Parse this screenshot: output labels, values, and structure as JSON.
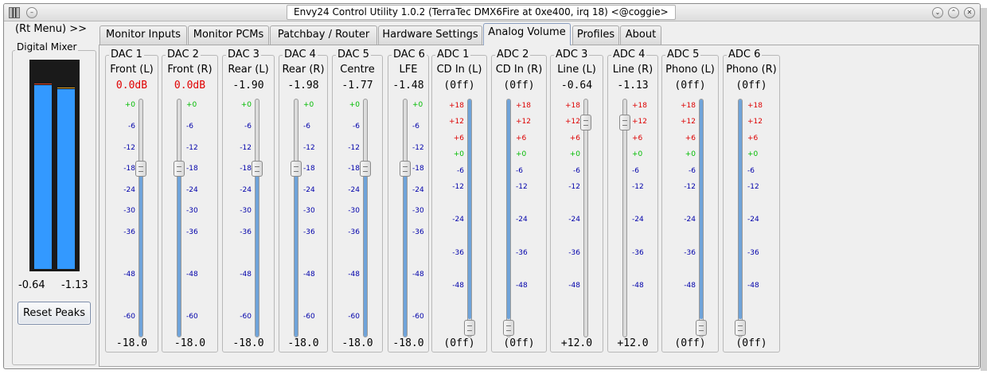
{
  "window": {
    "title": "Envy24 Control Utility 1.0.2 (TerraTec DMX6Fire at 0xe400, irq 18) <@coggie>"
  },
  "left": {
    "rt_menu": "(Rt Menu) >>",
    "digital_mixer": "Digital Mixer",
    "meter_left": "-0.64",
    "meter_right": "-1.13",
    "meter_left_level": 0.88,
    "meter_right_level": 0.86,
    "reset_peaks": "Reset Peaks",
    "meter_color": "#3399ff"
  },
  "tabs": [
    {
      "label": "Monitor Inputs"
    },
    {
      "label": "Monitor PCMs"
    },
    {
      "label": "Patchbay / Router"
    },
    {
      "label": "Hardware Settings"
    },
    {
      "label": "Analog Volume",
      "active": true
    },
    {
      "label": "Profiles"
    },
    {
      "label": "About"
    }
  ],
  "strips": [
    {
      "title": "DAC 1",
      "name": "Front (L)",
      "value": "0.0dB",
      "red": true,
      "bottom": "-18.0",
      "level": 0.72,
      "side": "left",
      "kind": "dac"
    },
    {
      "title": "DAC 2",
      "name": "Front (R)",
      "value": "0.0dB",
      "red": true,
      "bottom": "-18.0",
      "level": 0.72,
      "side": "right",
      "kind": "dac"
    },
    {
      "title": "DAC 3",
      "name": "Rear (L)",
      "value": "-1.90",
      "red": false,
      "bottom": "-18.0",
      "level": 0.72,
      "side": "left",
      "kind": "dac"
    },
    {
      "title": "DAC 4",
      "name": "Rear (R)",
      "value": "-1.98",
      "red": false,
      "bottom": "-18.0",
      "level": 0.72,
      "side": "right",
      "kind": "dac"
    },
    {
      "title": "DAC 5",
      "name": "Centre",
      "value": "-1.77",
      "red": false,
      "bottom": "-18.0",
      "level": 0.72,
      "side": "left",
      "kind": "dac"
    },
    {
      "title": "DAC 6",
      "name": "LFE",
      "value": "-1.48",
      "red": false,
      "bottom": "-18.0",
      "level": 0.72,
      "side": "right",
      "kind": "dac"
    },
    {
      "title": "ADC 1",
      "name": "CD In (L)",
      "value": "(0ff)",
      "red": false,
      "bottom": "(0ff)",
      "level": 0.0,
      "side": "left",
      "kind": "adc"
    },
    {
      "title": "ADC 2",
      "name": "CD In (R)",
      "value": "(0ff)",
      "red": false,
      "bottom": "(0ff)",
      "level": 0.0,
      "side": "right",
      "kind": "adc"
    },
    {
      "title": "ADC 3",
      "name": "Line  (L)",
      "value": "-0.64",
      "red": false,
      "bottom": "+12.0",
      "level": 0.92,
      "side": "left",
      "kind": "adc"
    },
    {
      "title": "ADC 4",
      "name": "Line  (R)",
      "value": "-1.13",
      "red": false,
      "bottom": "+12.0",
      "level": 0.92,
      "side": "right",
      "kind": "adc"
    },
    {
      "title": "ADC 5",
      "name": "Phono (L)",
      "value": "(0ff)",
      "red": false,
      "bottom": "(0ff)",
      "level": 0.0,
      "side": "left",
      "kind": "adc"
    },
    {
      "title": "ADC 6",
      "name": "Phono (R)",
      "value": "(0ff)",
      "red": false,
      "bottom": "(0ff)",
      "level": 0.0,
      "side": "right",
      "kind": "adc"
    }
  ],
  "dac_ticks": [
    "+0",
    "-6",
    "-12",
    "-18",
    "-24",
    "-30",
    "-36",
    "-48",
    "-60"
  ],
  "adc_ticks": [
    "+18",
    "+12",
    "+6",
    "+0",
    "-6",
    "-12",
    "-24",
    "-36",
    "-48"
  ],
  "colors": {
    "tick_pos": "#dd0000",
    "tick_zero": "#00bb00",
    "tick_neg": "#0000aa",
    "slider_fill": "#6fa3d9"
  }
}
